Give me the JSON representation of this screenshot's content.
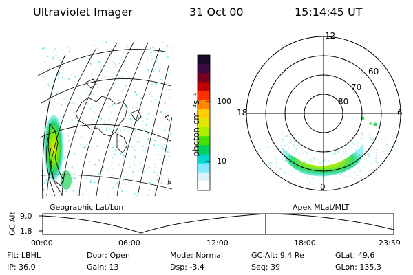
{
  "header": {
    "instrument": "Ultraviolet Imager",
    "date": "31 Oct 00",
    "time": "15:14:45 UT"
  },
  "colorbar": {
    "unit_label": "photon cm⁻²s⁻¹",
    "ticks": [
      "100",
      "10"
    ],
    "colors": [
      "#1a0a2a",
      "#3b0a40",
      "#7a0020",
      "#c00000",
      "#ff3000",
      "#ff8800",
      "#ffcc00",
      "#e6e600",
      "#aaf000",
      "#44e000",
      "#00d060",
      "#00d8d0",
      "#80e8ff",
      "#d8f4f8",
      "#ffffff"
    ]
  },
  "left_map": {
    "label": "Geographic Lat/Lon"
  },
  "polar_plot": {
    "label": "Apex MLat/MLT",
    "mlt_labels": {
      "top": "12",
      "left": "18",
      "right": "6",
      "bottom": "0"
    },
    "lat_labels": [
      "60",
      "70",
      "80"
    ]
  },
  "timeline": {
    "ylabel": "GC Alt",
    "yticks": [
      "9.0",
      "1.8"
    ],
    "xticks": [
      "00:00",
      "06:00",
      "12:00",
      "18:00",
      "23:59"
    ],
    "current_time_fraction": 0.635
  },
  "status": {
    "row1": [
      {
        "label": "Flt:",
        "value": "LBHL"
      },
      {
        "label": "Door:",
        "value": "Open"
      },
      {
        "label": "Mode:",
        "value": "Normal"
      },
      {
        "label": "GC Alt:",
        "value": "9.4 Re"
      },
      {
        "label": "GLat:",
        "value": "49.6"
      }
    ],
    "row2": [
      {
        "label": "IP:",
        "value": "36.0"
      },
      {
        "label": "Gain:",
        "value": "13"
      },
      {
        "label": "Dsp:",
        "value": "-3.4"
      },
      {
        "label": "Seq:",
        "value": "39"
      },
      {
        "label": "GLon:",
        "value": "135.3"
      }
    ]
  }
}
